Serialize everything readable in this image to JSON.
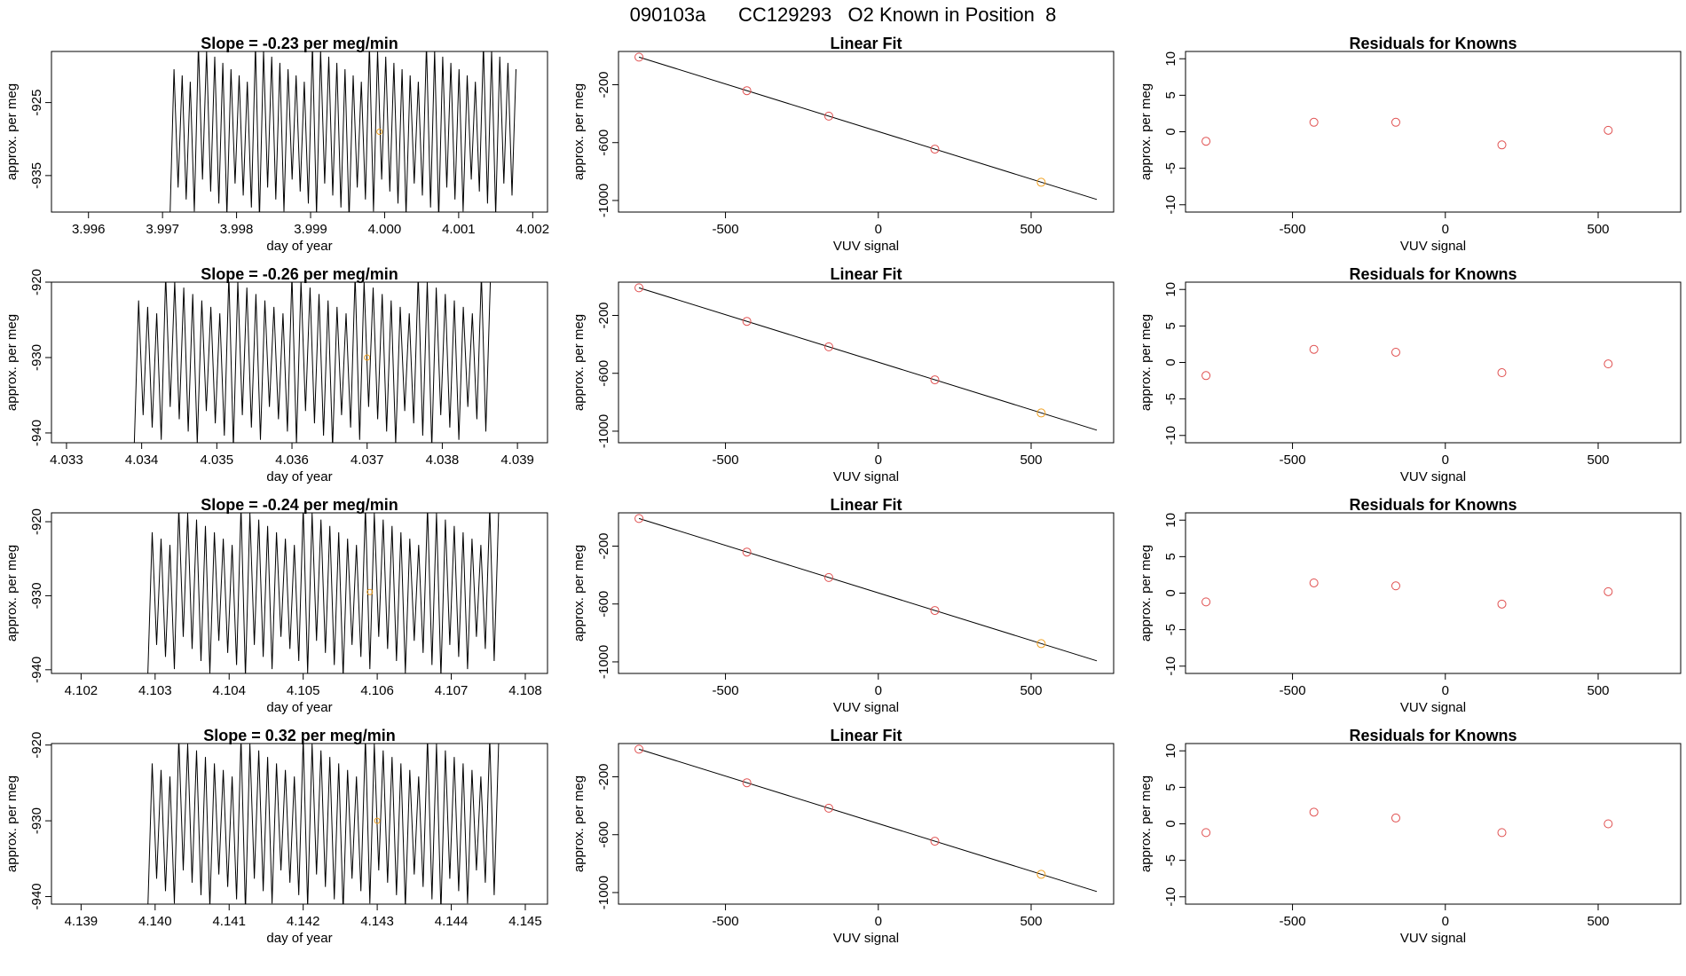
{
  "suptitle": "090103a      CC129293   O2 Known in Position  8",
  "colors": {
    "line": "#000000",
    "known_point": "#e05050",
    "highlight_point": "#f0a020",
    "axis": "#000000"
  },
  "chart_data": [
    {
      "panel": "row1-timeseries",
      "type": "line",
      "title": "Slope =  -0.23  per meg/min",
      "xlabel": "day of year",
      "ylabel": "approx. per meg",
      "xlim": [
        3.9955,
        4.0022
      ],
      "ylim": [
        -940,
        -918
      ],
      "xticks": [
        "3.996",
        "3.997",
        "3.998",
        "3.999",
        "4.000",
        "4.001",
        "4.002"
      ],
      "yticks": [
        "-925",
        "-935"
      ],
      "oscillation": {
        "x_start": 3.9971,
        "x_end": 4.0018,
        "period": 0.00011,
        "low": -941,
        "high": -917
      },
      "highlight_point": {
        "x": 3.99993,
        "y": -929
      }
    },
    {
      "panel": "row1-fit",
      "type": "scatter",
      "title": "Linear Fit",
      "xlabel": "VUV signal",
      "ylabel": "approx. per meg",
      "xlim": [
        -850,
        770
      ],
      "ylim": [
        -1080,
        30
      ],
      "xticks": [
        "-500",
        "0",
        "500"
      ],
      "yticks": [
        "-200",
        "-600",
        "-1000"
      ],
      "points": [
        [
          -783,
          -9
        ],
        [
          -430,
          -241
        ],
        [
          -162,
          -417
        ],
        [
          185,
          -645
        ],
        [
          533,
          -874
        ]
      ],
      "highlight_index": 4,
      "fit_line": [
        [
          -783,
          -9
        ],
        [
          715,
          -993
        ]
      ]
    },
    {
      "panel": "row1-residuals",
      "type": "scatter",
      "title": "Residuals for Knowns",
      "xlabel": "VUV signal",
      "ylabel": "approx. per meg",
      "xlim": [
        -850,
        770
      ],
      "ylim": [
        -11,
        11
      ],
      "xticks": [
        "-500",
        "0",
        "500"
      ],
      "yticks": [
        "10",
        "5",
        "0",
        "-5",
        "-10"
      ],
      "points": [
        [
          -783,
          -1.3
        ],
        [
          -430,
          1.3
        ],
        [
          -162,
          1.3
        ],
        [
          185,
          -1.8
        ],
        [
          533,
          0.2
        ]
      ]
    },
    {
      "panel": "row2-timeseries",
      "type": "line",
      "title": "Slope =  -0.26  per meg/min",
      "xlabel": "day of year",
      "ylabel": "approx. per meg",
      "xlim": [
        4.0328,
        4.0394
      ],
      "ylim": [
        -941.3,
        -920
      ],
      "xticks": [
        "4.033",
        "4.034",
        "4.035",
        "4.036",
        "4.037",
        "4.038",
        "4.039"
      ],
      "yticks": [
        "-920",
        "-930",
        "-940"
      ],
      "oscillation": {
        "x_start": 4.0339,
        "x_end": 4.0387,
        "period": 0.00012,
        "low": -942,
        "high": -919
      },
      "highlight_point": {
        "x": 4.037,
        "y": -930
      }
    },
    {
      "panel": "row2-fit",
      "type": "scatter",
      "title": "Linear Fit",
      "xlabel": "VUV signal",
      "ylabel": "approx. per meg",
      "xlim": [
        -850,
        770
      ],
      "ylim": [
        -1080,
        30
      ],
      "xticks": [
        "-500",
        "0",
        "500"
      ],
      "yticks": [
        "-200",
        "-600",
        "-1000"
      ],
      "points": [
        [
          -783,
          -9
        ],
        [
          -430,
          -241
        ],
        [
          -162,
          -417
        ],
        [
          185,
          -645
        ],
        [
          533,
          -874
        ]
      ],
      "highlight_index": 4,
      "fit_line": [
        [
          -783,
          -9
        ],
        [
          715,
          -993
        ]
      ]
    },
    {
      "panel": "row2-residuals",
      "type": "scatter",
      "title": "Residuals for Knowns",
      "xlabel": "VUV signal",
      "ylabel": "approx. per meg",
      "xlim": [
        -850,
        770
      ],
      "ylim": [
        -11,
        11
      ],
      "xticks": [
        "-500",
        "0",
        "500"
      ],
      "yticks": [
        "10",
        "5",
        "0",
        "-5",
        "-10"
      ],
      "points": [
        [
          -783,
          -1.8
        ],
        [
          -430,
          1.8
        ],
        [
          -162,
          1.4
        ],
        [
          185,
          -1.4
        ],
        [
          533,
          -0.2
        ]
      ]
    },
    {
      "panel": "row3-timeseries",
      "type": "line",
      "title": "Slope =  -0.24  per meg/min",
      "xlabel": "day of year",
      "ylabel": "approx. per meg",
      "xlim": [
        4.1016,
        4.1083
      ],
      "ylim": [
        -940.5,
        -918.8
      ],
      "xticks": [
        "4.102",
        "4.103",
        "4.104",
        "4.105",
        "4.106",
        "4.107",
        "4.108"
      ],
      "yticks": [
        "-920",
        "-930",
        "-940"
      ],
      "oscillation": {
        "x_start": 4.1029,
        "x_end": 4.1077,
        "period": 0.00012,
        "low": -941,
        "high": -918
      },
      "highlight_point": {
        "x": 4.1059,
        "y": -929.5
      }
    },
    {
      "panel": "row3-fit",
      "type": "scatter",
      "title": "Linear Fit",
      "xlabel": "VUV signal",
      "ylabel": "approx. per meg",
      "xlim": [
        -850,
        770
      ],
      "ylim": [
        -1080,
        30
      ],
      "xticks": [
        "-500",
        "0",
        "500"
      ],
      "yticks": [
        "-200",
        "-600",
        "-1000"
      ],
      "points": [
        [
          -783,
          -9
        ],
        [
          -430,
          -241
        ],
        [
          -162,
          -417
        ],
        [
          185,
          -645
        ],
        [
          533,
          -874
        ]
      ],
      "highlight_index": 4,
      "fit_line": [
        [
          -783,
          -9
        ],
        [
          715,
          -993
        ]
      ]
    },
    {
      "panel": "row3-residuals",
      "type": "scatter",
      "title": "Residuals for Knowns",
      "xlabel": "VUV signal",
      "ylabel": "approx. per meg",
      "xlim": [
        -850,
        770
      ],
      "ylim": [
        -11,
        11
      ],
      "xticks": [
        "-500",
        "0",
        "500"
      ],
      "yticks": [
        "10",
        "5",
        "0",
        "-5",
        "-10"
      ],
      "points": [
        [
          -783,
          -1.2
        ],
        [
          -430,
          1.4
        ],
        [
          -162,
          1.0
        ],
        [
          185,
          -1.5
        ],
        [
          533,
          0.2
        ]
      ]
    },
    {
      "panel": "row4-timeseries",
      "type": "line",
      "title": "Slope =  0.32  per meg/min",
      "xlabel": "day of year",
      "ylabel": "approx. per meg",
      "xlim": [
        4.1386,
        4.1453
      ],
      "ylim": [
        -941,
        -919.8
      ],
      "xticks": [
        "4.139",
        "4.140",
        "4.141",
        "4.142",
        "4.143",
        "4.144",
        "4.145"
      ],
      "yticks": [
        "-920",
        "-930",
        "-940"
      ],
      "oscillation": {
        "x_start": 4.1399,
        "x_end": 4.1447,
        "period": 0.00012,
        "low": -942,
        "high": -919
      },
      "highlight_point": {
        "x": 4.143,
        "y": -930
      }
    },
    {
      "panel": "row4-fit",
      "type": "scatter",
      "title": "Linear Fit",
      "xlabel": "VUV signal",
      "ylabel": "approx. per meg",
      "xlim": [
        -850,
        770
      ],
      "ylim": [
        -1080,
        30
      ],
      "xticks": [
        "-500",
        "0",
        "500"
      ],
      "yticks": [
        "-200",
        "-600",
        "-1000"
      ],
      "points": [
        [
          -783,
          -9
        ],
        [
          -430,
          -241
        ],
        [
          -162,
          -417
        ],
        [
          185,
          -645
        ],
        [
          533,
          -874
        ]
      ],
      "highlight_index": 4,
      "fit_line": [
        [
          -783,
          -9
        ],
        [
          715,
          -993
        ]
      ]
    },
    {
      "panel": "row4-residuals",
      "type": "scatter",
      "title": "Residuals for Knowns",
      "xlabel": "VUV signal",
      "ylabel": "approx. per meg",
      "xlim": [
        -850,
        770
      ],
      "ylim": [
        -11,
        11
      ],
      "xticks": [
        "-500",
        "0",
        "500"
      ],
      "yticks": [
        "10",
        "5",
        "0",
        "-5",
        "-10"
      ],
      "points": [
        [
          -783,
          -1.2
        ],
        [
          -430,
          1.6
        ],
        [
          -162,
          0.8
        ],
        [
          185,
          -1.2
        ],
        [
          533,
          0.0
        ]
      ]
    }
  ]
}
